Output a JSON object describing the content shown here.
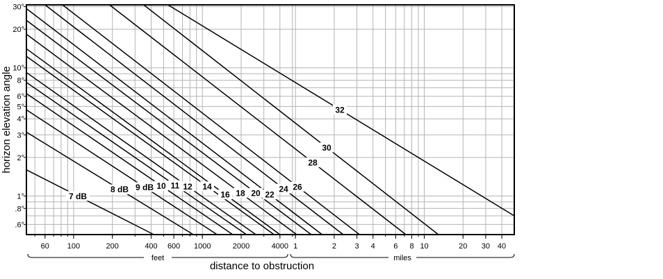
{
  "chart_data": {
    "type": "line",
    "title": "",
    "xlabel": "distance to obstruction",
    "ylabel": "horizon elevation angle",
    "x_scale": "log",
    "y_scale": "log",
    "x_unit_groups": [
      {
        "label": "feet",
        "ticks": [
          "60",
          "100",
          "200",
          "400",
          "600",
          "1000",
          "2000",
          "4000"
        ]
      },
      {
        "label": "miles",
        "ticks": [
          "1",
          "2",
          "3",
          "4",
          "6",
          "8",
          "10",
          "20",
          "30",
          "40"
        ]
      }
    ],
    "x_range_feet": [
      43,
      264000
    ],
    "y_ticks": [
      "30°",
      "20°",
      "10°",
      "8°",
      "6°",
      "5°",
      "4°",
      "3°",
      "2°",
      "1°",
      ".8°",
      ".6°"
    ],
    "y_range_deg": [
      0.5,
      31
    ],
    "grid": true,
    "series": [
      {
        "name": "7 dB",
        "points": [
          [
            43,
            1.6
          ],
          [
            420,
            0.5
          ]
        ]
      },
      {
        "name": "8 dB",
        "points": [
          [
            43,
            3.15
          ],
          [
            850,
            0.5
          ]
        ]
      },
      {
        "name": "9 dB",
        "points": [
          [
            43,
            4.7
          ],
          [
            1300,
            0.5
          ]
        ]
      },
      {
        "name": "10",
        "points": [
          [
            43,
            6.3
          ],
          [
            1720,
            0.5
          ]
        ]
      },
      {
        "name": "11",
        "points": [
          [
            43,
            7.7
          ],
          [
            2200,
            0.5
          ]
        ]
      },
      {
        "name": "12",
        "points": [
          [
            43,
            9.2
          ],
          [
            2600,
            0.5
          ]
        ]
      },
      {
        "name": "14",
        "points": [
          [
            43,
            12.3
          ],
          [
            3600,
            0.5
          ]
        ]
      },
      {
        "name": "16",
        "points": [
          [
            43,
            14.1
          ],
          [
            4000,
            0.5
          ]
        ]
      },
      {
        "name": "18",
        "points": [
          [
            43,
            18.3
          ],
          [
            5400,
            0.5
          ]
        ]
      },
      {
        "name": "20",
        "points": [
          [
            43,
            23.5
          ],
          [
            7000,
            0.5
          ]
        ]
      },
      {
        "name": "22",
        "points": [
          [
            43,
            29.0
          ],
          [
            8500,
            0.5
          ]
        ]
      },
      {
        "name": "24",
        "points": [
          [
            60,
            31.0
          ],
          [
            12400,
            0.5
          ]
        ]
      },
      {
        "name": "26",
        "points": [
          [
            82,
            31.0
          ],
          [
            16600,
            0.5
          ]
        ]
      },
      {
        "name": "28",
        "points": [
          [
            190,
            31.0
          ],
          [
            38000,
            0.5
          ]
        ]
      },
      {
        "name": "30",
        "points": [
          [
            350,
            31.0
          ],
          [
            68000,
            0.5
          ]
        ]
      },
      {
        "name": "32",
        "points": [
          [
            540,
            31.0
          ],
          [
            264000,
            0.7
          ]
        ]
      }
    ]
  }
}
